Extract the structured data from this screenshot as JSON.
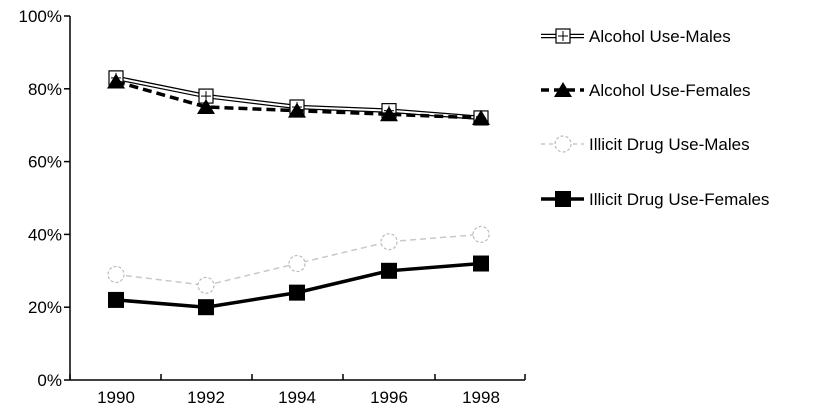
{
  "chart_data": {
    "type": "line",
    "title": "",
    "xlabel": "",
    "ylabel": "",
    "categories": [
      "1990",
      "1992",
      "1994",
      "1996",
      "1998"
    ],
    "ylim": [
      0,
      100
    ],
    "y_ticks": [
      "0%",
      "20%",
      "40%",
      "60%",
      "80%",
      "100%"
    ],
    "grid": false,
    "legend_position": "right",
    "series": [
      {
        "name": "Alcohol Use-Males",
        "values": [
          83,
          78,
          75,
          74,
          72
        ],
        "color": "#000000",
        "line": "double",
        "marker": "open-square-cross"
      },
      {
        "name": "Alcohol Use-Females",
        "values": [
          82,
          75,
          74,
          73,
          72
        ],
        "color": "#000000",
        "line": "dashed",
        "marker": "filled-triangle"
      },
      {
        "name": "Illicit Drug Use-Males",
        "values": [
          29,
          26,
          32,
          38,
          40
        ],
        "color": "#000000",
        "line": "faint-dashed",
        "marker": "open-circle"
      },
      {
        "name": "Illicit Drug Use-Females",
        "values": [
          22,
          20,
          24,
          30,
          32
        ],
        "color": "#000000",
        "line": "thick",
        "marker": "filled-square"
      }
    ]
  }
}
